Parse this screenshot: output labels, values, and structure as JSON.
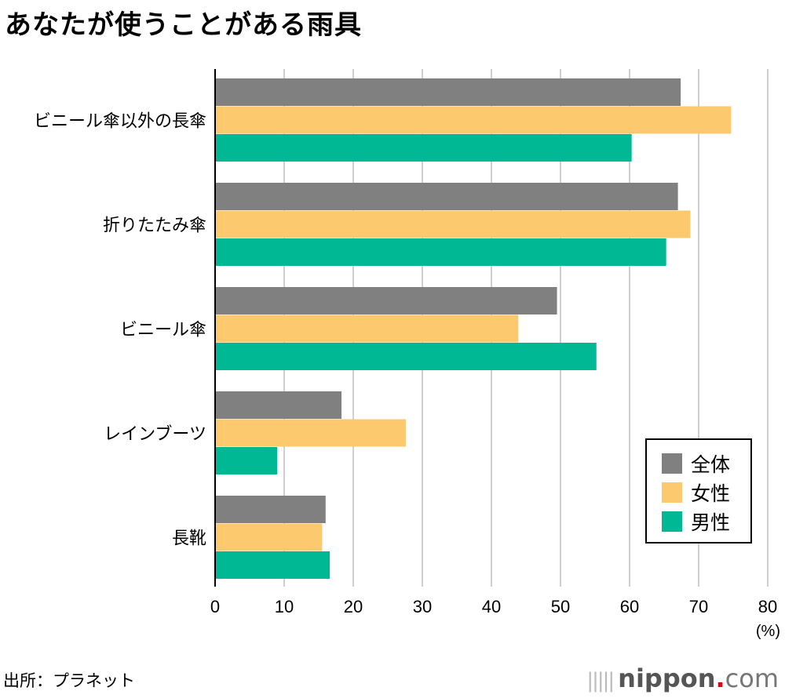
{
  "chart_data": {
    "type": "bar",
    "orientation": "horizontal",
    "title": "あなたが使うことがある雨具",
    "categories": [
      "ビニール傘以外の長傘",
      "折りたたみ傘",
      "ビニール傘",
      "レインブーツ",
      "長靴"
    ],
    "series": [
      {
        "name": "全体",
        "color": "#808080",
        "values": [
          67.4,
          67.0,
          49.5,
          18.3,
          16.0
        ]
      },
      {
        "name": "女性",
        "color": "#fcc96e",
        "values": [
          74.7,
          68.8,
          43.9,
          27.6,
          15.5
        ]
      },
      {
        "name": "男性",
        "color": "#00b894",
        "values": [
          60.3,
          65.3,
          55.2,
          9.0,
          16.6
        ]
      }
    ],
    "xlabel": "(%)",
    "ylabel": "",
    "xlim": [
      0,
      80
    ],
    "xticks": [
      "0",
      "10",
      "20",
      "30",
      "40",
      "50",
      "60",
      "70",
      "80"
    ],
    "grid": "vertical",
    "legend": "bottom-right"
  },
  "footer": {
    "source": "出所：プラネット",
    "logo_bars": "|||||",
    "logo_main": "nippon",
    "logo_dot": ".",
    "logo_tld": "com"
  }
}
